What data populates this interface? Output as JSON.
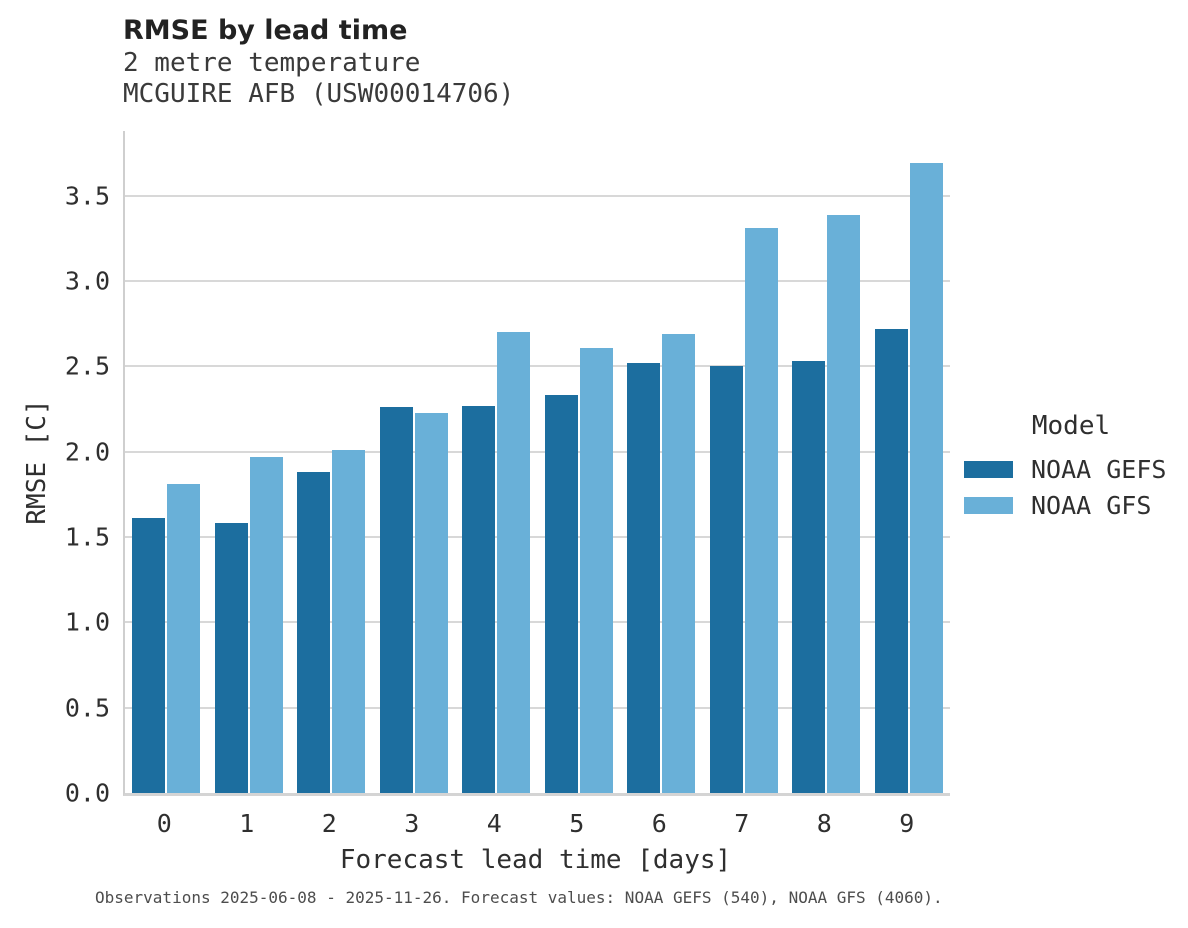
{
  "chart_data": {
    "type": "bar",
    "title": "RMSE by lead time",
    "subtitle1": "2 metre temperature",
    "subtitle2": "MCGUIRE AFB (USW00014706)",
    "xlabel": "Forecast lead time [days]",
    "ylabel": "RMSE [C]",
    "categories": [
      "0",
      "1",
      "2",
      "3",
      "4",
      "5",
      "6",
      "7",
      "8",
      "9"
    ],
    "series": [
      {
        "name": "NOAA GEFS",
        "color": "#1c6e9f",
        "values": [
          1.61,
          1.58,
          1.88,
          2.26,
          2.27,
          2.33,
          2.52,
          2.5,
          2.53,
          2.72
        ]
      },
      {
        "name": "NOAA GFS",
        "color": "#69b0d8",
        "values": [
          1.81,
          1.97,
          2.01,
          2.23,
          2.7,
          2.61,
          2.69,
          3.31,
          3.39,
          3.69
        ]
      }
    ],
    "ylim": [
      0,
      3.88
    ],
    "yticks": [
      0.0,
      0.5,
      1.0,
      1.5,
      2.0,
      2.5,
      3.0,
      3.5
    ],
    "ytick_decimals": 1,
    "grid": true,
    "grid_color": "#d8d8d8",
    "axis_color": "#cfcfcf",
    "legend_title": "Model",
    "legend_position": "right",
    "caption": "Observations 2025-06-08 - 2025-11-26. Forecast values: NOAA GEFS (540), NOAA GFS (4060)."
  }
}
